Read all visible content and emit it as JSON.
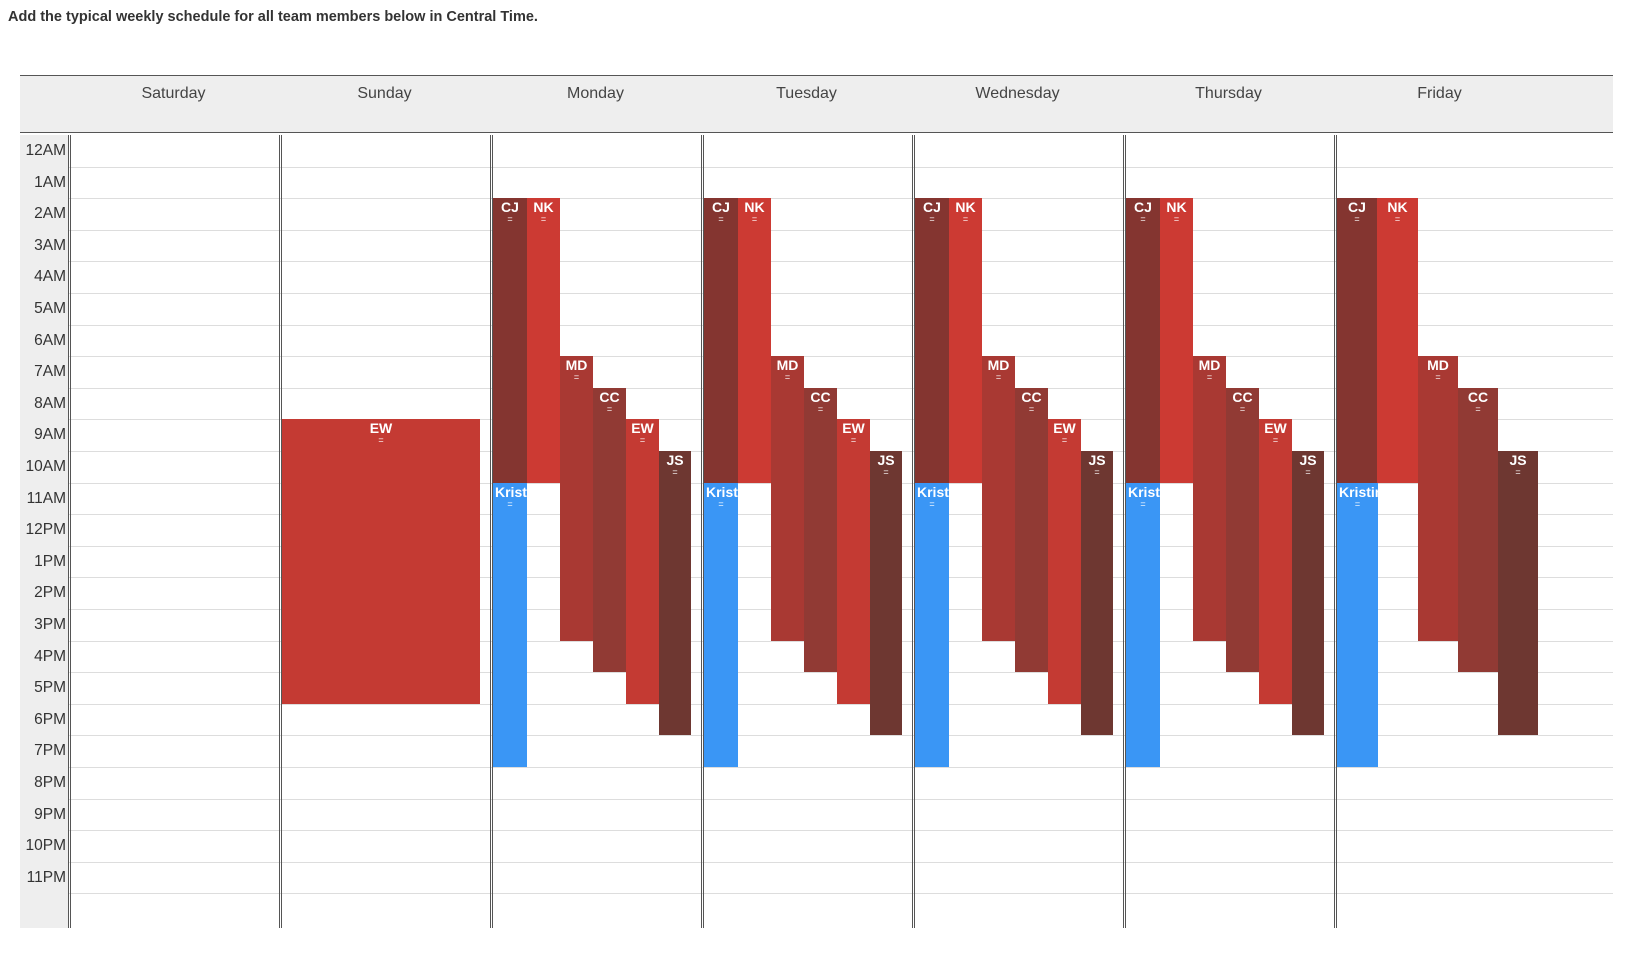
{
  "instructions": "Add the typical weekly schedule for all team members below in Central Time.",
  "days": [
    "Saturday",
    "Sunday",
    "Monday",
    "Tuesday",
    "Wednesday",
    "Thursday",
    "Friday"
  ],
  "hours": [
    "12AM",
    "1AM",
    "2AM",
    "3AM",
    "4AM",
    "5AM",
    "6AM",
    "7AM",
    "8AM",
    "9AM",
    "10AM",
    "11AM",
    "12PM",
    "1PM",
    "2PM",
    "3PM",
    "4PM",
    "5PM",
    "6PM",
    "7PM",
    "8PM",
    "9PM",
    "10PM",
    "11PM"
  ],
  "colors": {
    "CJ": "#843530",
    "NK": "#cc3a33",
    "MD": "#a93933",
    "CC": "#913a34",
    "EW": "#c43a33",
    "JS": "#6e3731",
    "Krist": "#3a96f5"
  },
  "resize_handle": "=",
  "events": [
    {
      "day": 1,
      "label": "EW",
      "who": "EW",
      "start": 9,
      "end": 18
    },
    {
      "day": 2,
      "label": "CJ",
      "who": "CJ",
      "start": 2,
      "end": 11
    },
    {
      "day": 2,
      "label": "NK",
      "who": "NK",
      "start": 2,
      "end": 11
    },
    {
      "day": 2,
      "label": "MD",
      "who": "MD",
      "start": 7,
      "end": 16
    },
    {
      "day": 2,
      "label": "CC",
      "who": "CC",
      "start": 8,
      "end": 17
    },
    {
      "day": 2,
      "label": "EW",
      "who": "EW",
      "start": 9,
      "end": 18
    },
    {
      "day": 2,
      "label": "JS",
      "who": "JS",
      "start": 10,
      "end": 19
    },
    {
      "day": 2,
      "label": "Krist",
      "who": "Krist",
      "start": 11,
      "end": 20
    },
    {
      "day": 3,
      "label": "CJ",
      "who": "CJ",
      "start": 2,
      "end": 11
    },
    {
      "day": 3,
      "label": "NK",
      "who": "NK",
      "start": 2,
      "end": 11
    },
    {
      "day": 3,
      "label": "MD",
      "who": "MD",
      "start": 7,
      "end": 16
    },
    {
      "day": 3,
      "label": "CC",
      "who": "CC",
      "start": 8,
      "end": 17
    },
    {
      "day": 3,
      "label": "EW",
      "who": "EW",
      "start": 9,
      "end": 18
    },
    {
      "day": 3,
      "label": "JS",
      "who": "JS",
      "start": 10,
      "end": 19
    },
    {
      "day": 3,
      "label": "Krist",
      "who": "Krist",
      "start": 11,
      "end": 20
    },
    {
      "day": 4,
      "label": "CJ",
      "who": "CJ",
      "start": 2,
      "end": 11
    },
    {
      "day": 4,
      "label": "NK",
      "who": "NK",
      "start": 2,
      "end": 11
    },
    {
      "day": 4,
      "label": "MD",
      "who": "MD",
      "start": 7,
      "end": 16
    },
    {
      "day": 4,
      "label": "CC",
      "who": "CC",
      "start": 8,
      "end": 17
    },
    {
      "day": 4,
      "label": "EW",
      "who": "EW",
      "start": 9,
      "end": 18
    },
    {
      "day": 4,
      "label": "JS",
      "who": "JS",
      "start": 10,
      "end": 19
    },
    {
      "day": 4,
      "label": "Krist",
      "who": "Krist",
      "start": 11,
      "end": 20
    },
    {
      "day": 5,
      "label": "CJ",
      "who": "CJ",
      "start": 2,
      "end": 11
    },
    {
      "day": 5,
      "label": "NK",
      "who": "NK",
      "start": 2,
      "end": 11
    },
    {
      "day": 5,
      "label": "MD",
      "who": "MD",
      "start": 7,
      "end": 16
    },
    {
      "day": 5,
      "label": "CC",
      "who": "CC",
      "start": 8,
      "end": 17
    },
    {
      "day": 5,
      "label": "EW",
      "who": "EW",
      "start": 9,
      "end": 18
    },
    {
      "day": 5,
      "label": "JS",
      "who": "JS",
      "start": 10,
      "end": 19
    },
    {
      "day": 5,
      "label": "Krist",
      "who": "Krist",
      "start": 11,
      "end": 20
    },
    {
      "day": 6,
      "label": "CJ",
      "who": "CJ",
      "start": 2,
      "end": 11
    },
    {
      "day": 6,
      "label": "NK",
      "who": "NK",
      "start": 2,
      "end": 11
    },
    {
      "day": 6,
      "label": "MD",
      "who": "MD",
      "start": 7,
      "end": 16
    },
    {
      "day": 6,
      "label": "CC",
      "who": "CC",
      "start": 8,
      "end": 17
    },
    {
      "day": 6,
      "label": "JS",
      "who": "JS",
      "start": 10,
      "end": 19
    },
    {
      "day": 6,
      "label": "Kristin",
      "who": "Krist",
      "start": 11,
      "end": 20
    }
  ]
}
